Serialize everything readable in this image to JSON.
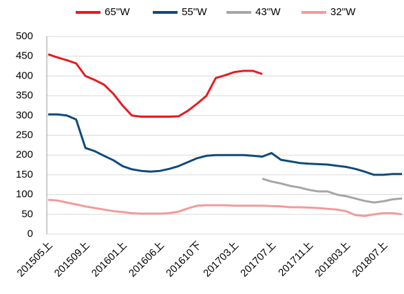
{
  "chart_data": {
    "type": "line",
    "categories": [
      "201505上",
      null,
      null,
      null,
      "201509上",
      null,
      null,
      null,
      "201601上",
      null,
      null,
      null,
      "201606上",
      null,
      null,
      null,
      "201610下",
      null,
      null,
      null,
      "201703上",
      null,
      null,
      null,
      "201707上",
      null,
      null,
      null,
      "201711上",
      null,
      null,
      null,
      "201803上",
      null,
      null,
      null,
      "201807上",
      null,
      null
    ],
    "series": [
      {
        "name": "65''W",
        "color": "#e8191e",
        "values": [
          455,
          447,
          440,
          432,
          400,
          390,
          378,
          355,
          325,
          300,
          297,
          297,
          297,
          297,
          298,
          312,
          330,
          350,
          395,
          402,
          410,
          413,
          413,
          405,
          null,
          null,
          null,
          null,
          null,
          null,
          null,
          null,
          null,
          null,
          null,
          null,
          null,
          null,
          null
        ]
      },
      {
        "name": "55''W",
        "color": "#0e4a7a",
        "values": [
          303,
          303,
          300,
          290,
          218,
          210,
          198,
          187,
          172,
          164,
          160,
          158,
          160,
          165,
          172,
          182,
          192,
          198,
          200,
          200,
          200,
          200,
          198,
          196,
          205,
          188,
          184,
          180,
          178,
          177,
          176,
          173,
          170,
          165,
          158,
          150,
          150,
          152,
          152
        ]
      },
      {
        "name": "43''W",
        "color": "#a6a6a6",
        "values": [
          null,
          null,
          null,
          null,
          null,
          null,
          null,
          null,
          null,
          null,
          null,
          null,
          null,
          null,
          null,
          null,
          null,
          null,
          null,
          null,
          null,
          null,
          null,
          140,
          133,
          128,
          122,
          118,
          112,
          108,
          108,
          100,
          96,
          90,
          84,
          80,
          83,
          88,
          90
        ]
      },
      {
        "name": "32''W",
        "color": "#f49a9a",
        "values": [
          87,
          85,
          80,
          75,
          70,
          66,
          62,
          58,
          56,
          53,
          52,
          52,
          52,
          53,
          57,
          65,
          72,
          73,
          73,
          73,
          72,
          72,
          72,
          72,
          71,
          70,
          68,
          68,
          67,
          66,
          64,
          62,
          58,
          48,
          46,
          50,
          53,
          53,
          50
        ]
      }
    ],
    "ylim": [
      0,
      500
    ],
    "yticks": [
      0,
      50,
      100,
      150,
      200,
      250,
      300,
      350,
      400,
      450,
      500
    ],
    "grid": true
  }
}
